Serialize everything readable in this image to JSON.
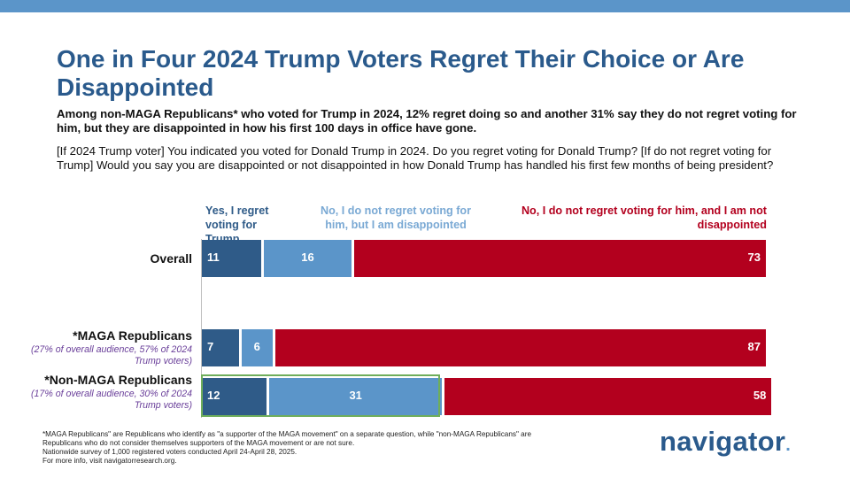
{
  "header": {
    "title": "One in Four 2024 Trump Voters Regret Their Choice or Are Disappointed",
    "subtitle": "Among non-MAGA Republicans* who voted for Trump in 2024, 12% regret doing so and another 31% say they do not regret voting for him, but they are disappointed in how his first 100 days in office have gone.",
    "question": "[If 2024 Trump voter] You indicated you voted for Donald Trump in 2024. Do you regret voting for Donald Trump? [If do not regret voting for Trump] Would you say you are disappointed or not disappointed in how Donald Trump has handled his first few months of being president?"
  },
  "chart_data": {
    "type": "bar",
    "orientation": "horizontal",
    "stacked": true,
    "categories": [
      "Overall",
      "*MAGA Republicans",
      "*Non-MAGA Republicans"
    ],
    "category_notes": [
      "",
      "(27% of overall audience, 57% of 2024 Trump voters)",
      "(17% of overall audience, 30% of 2024 Trump voters)"
    ],
    "series": [
      {
        "name": "Yes, I regret voting for Trump",
        "color": "#2f5b88",
        "values": [
          11,
          7,
          12
        ]
      },
      {
        "name": "No, I do not regret voting for him, but I am disappointed",
        "color": "#5b95c9",
        "values": [
          16,
          6,
          31
        ]
      },
      {
        "name": "No, I do not regret voting for him, and I am not disappointed",
        "color": "#b3001e",
        "values": [
          73,
          87,
          58
        ]
      }
    ],
    "highlighted_category": "*Non-MAGA Republicans",
    "xlim": [
      0,
      100
    ]
  },
  "footnote": {
    "line1": "*MAGA Republicans\" are Republicans who identify as \"a supporter of the MAGA movement\" on a separate question, while \"non-MAGA Republicans\" are Republicans who do not consider themselves supporters of the MAGA movement or are not sure.",
    "line2": "Nationwide survey of 1,000 registered voters conducted April 24-April 28, 2025.",
    "line3": "For more info, visit navigatorresearch.org."
  },
  "brand": {
    "name": "navigator",
    "dot": "."
  }
}
